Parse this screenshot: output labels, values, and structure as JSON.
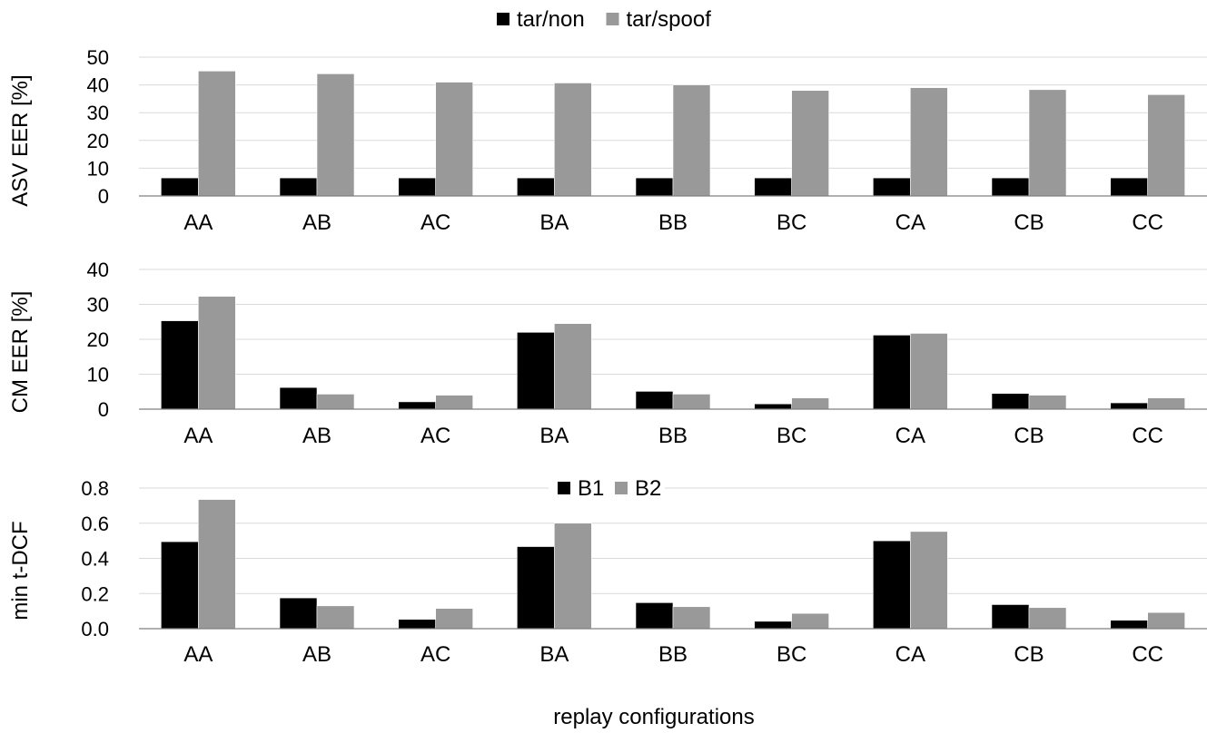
{
  "colors": {
    "series_1": "#000000",
    "series_2": "#999999",
    "grid": "#d9d9d9",
    "axis": "#808080"
  },
  "xlabel": "replay configurations",
  "chart_data": [
    {
      "type": "bar",
      "ylabel": "ASV EER [%]",
      "categories": [
        "AA",
        "AB",
        "AC",
        "BA",
        "BB",
        "BC",
        "CA",
        "CB",
        "CC"
      ],
      "ylim": [
        0,
        50
      ],
      "yticks": [
        "0",
        "10",
        "20",
        "30",
        "40",
        "50"
      ],
      "legend_position": "top-center",
      "series": [
        {
          "name": "tar/non",
          "values": [
            6.5,
            6.5,
            6.5,
            6.5,
            6.5,
            6.5,
            6.5,
            6.5,
            6.5
          ]
        },
        {
          "name": "tar/spoof",
          "values": [
            45,
            44,
            41,
            40.7,
            40,
            38,
            39,
            38.3,
            36.5
          ]
        }
      ]
    },
    {
      "type": "bar",
      "ylabel": "CM EER [%]",
      "categories": [
        "AA",
        "AB",
        "AC",
        "BA",
        "BB",
        "BC",
        "CA",
        "CB",
        "CC"
      ],
      "ylim": [
        0,
        40
      ],
      "yticks": [
        "0",
        "10",
        "20",
        "30",
        "40"
      ],
      "series": [
        {
          "values": [
            25.3,
            6.2,
            2.1,
            22,
            5.1,
            1.5,
            21.2,
            4.5,
            1.8
          ]
        },
        {
          "values": [
            32.3,
            4.3,
            4.0,
            24.5,
            4.3,
            3.2,
            21.7,
            4.0,
            3.2
          ]
        }
      ]
    },
    {
      "type": "bar",
      "ylabel": "min t-DCF",
      "categories": [
        "AA",
        "AB",
        "AC",
        "BA",
        "BB",
        "BC",
        "CA",
        "CB",
        "CC"
      ],
      "ylim": [
        0,
        0.8
      ],
      "yticks": [
        "0.0",
        "0.2",
        "0.4",
        "0.6",
        "0.8"
      ],
      "legend_position": "top-center",
      "series": [
        {
          "name": "B1",
          "values": [
            0.495,
            0.175,
            0.053,
            0.467,
            0.148,
            0.042,
            0.5,
            0.137,
            0.048
          ]
        },
        {
          "name": "B2",
          "values": [
            0.735,
            0.13,
            0.115,
            0.6,
            0.125,
            0.087,
            0.553,
            0.12,
            0.092
          ]
        }
      ]
    }
  ]
}
